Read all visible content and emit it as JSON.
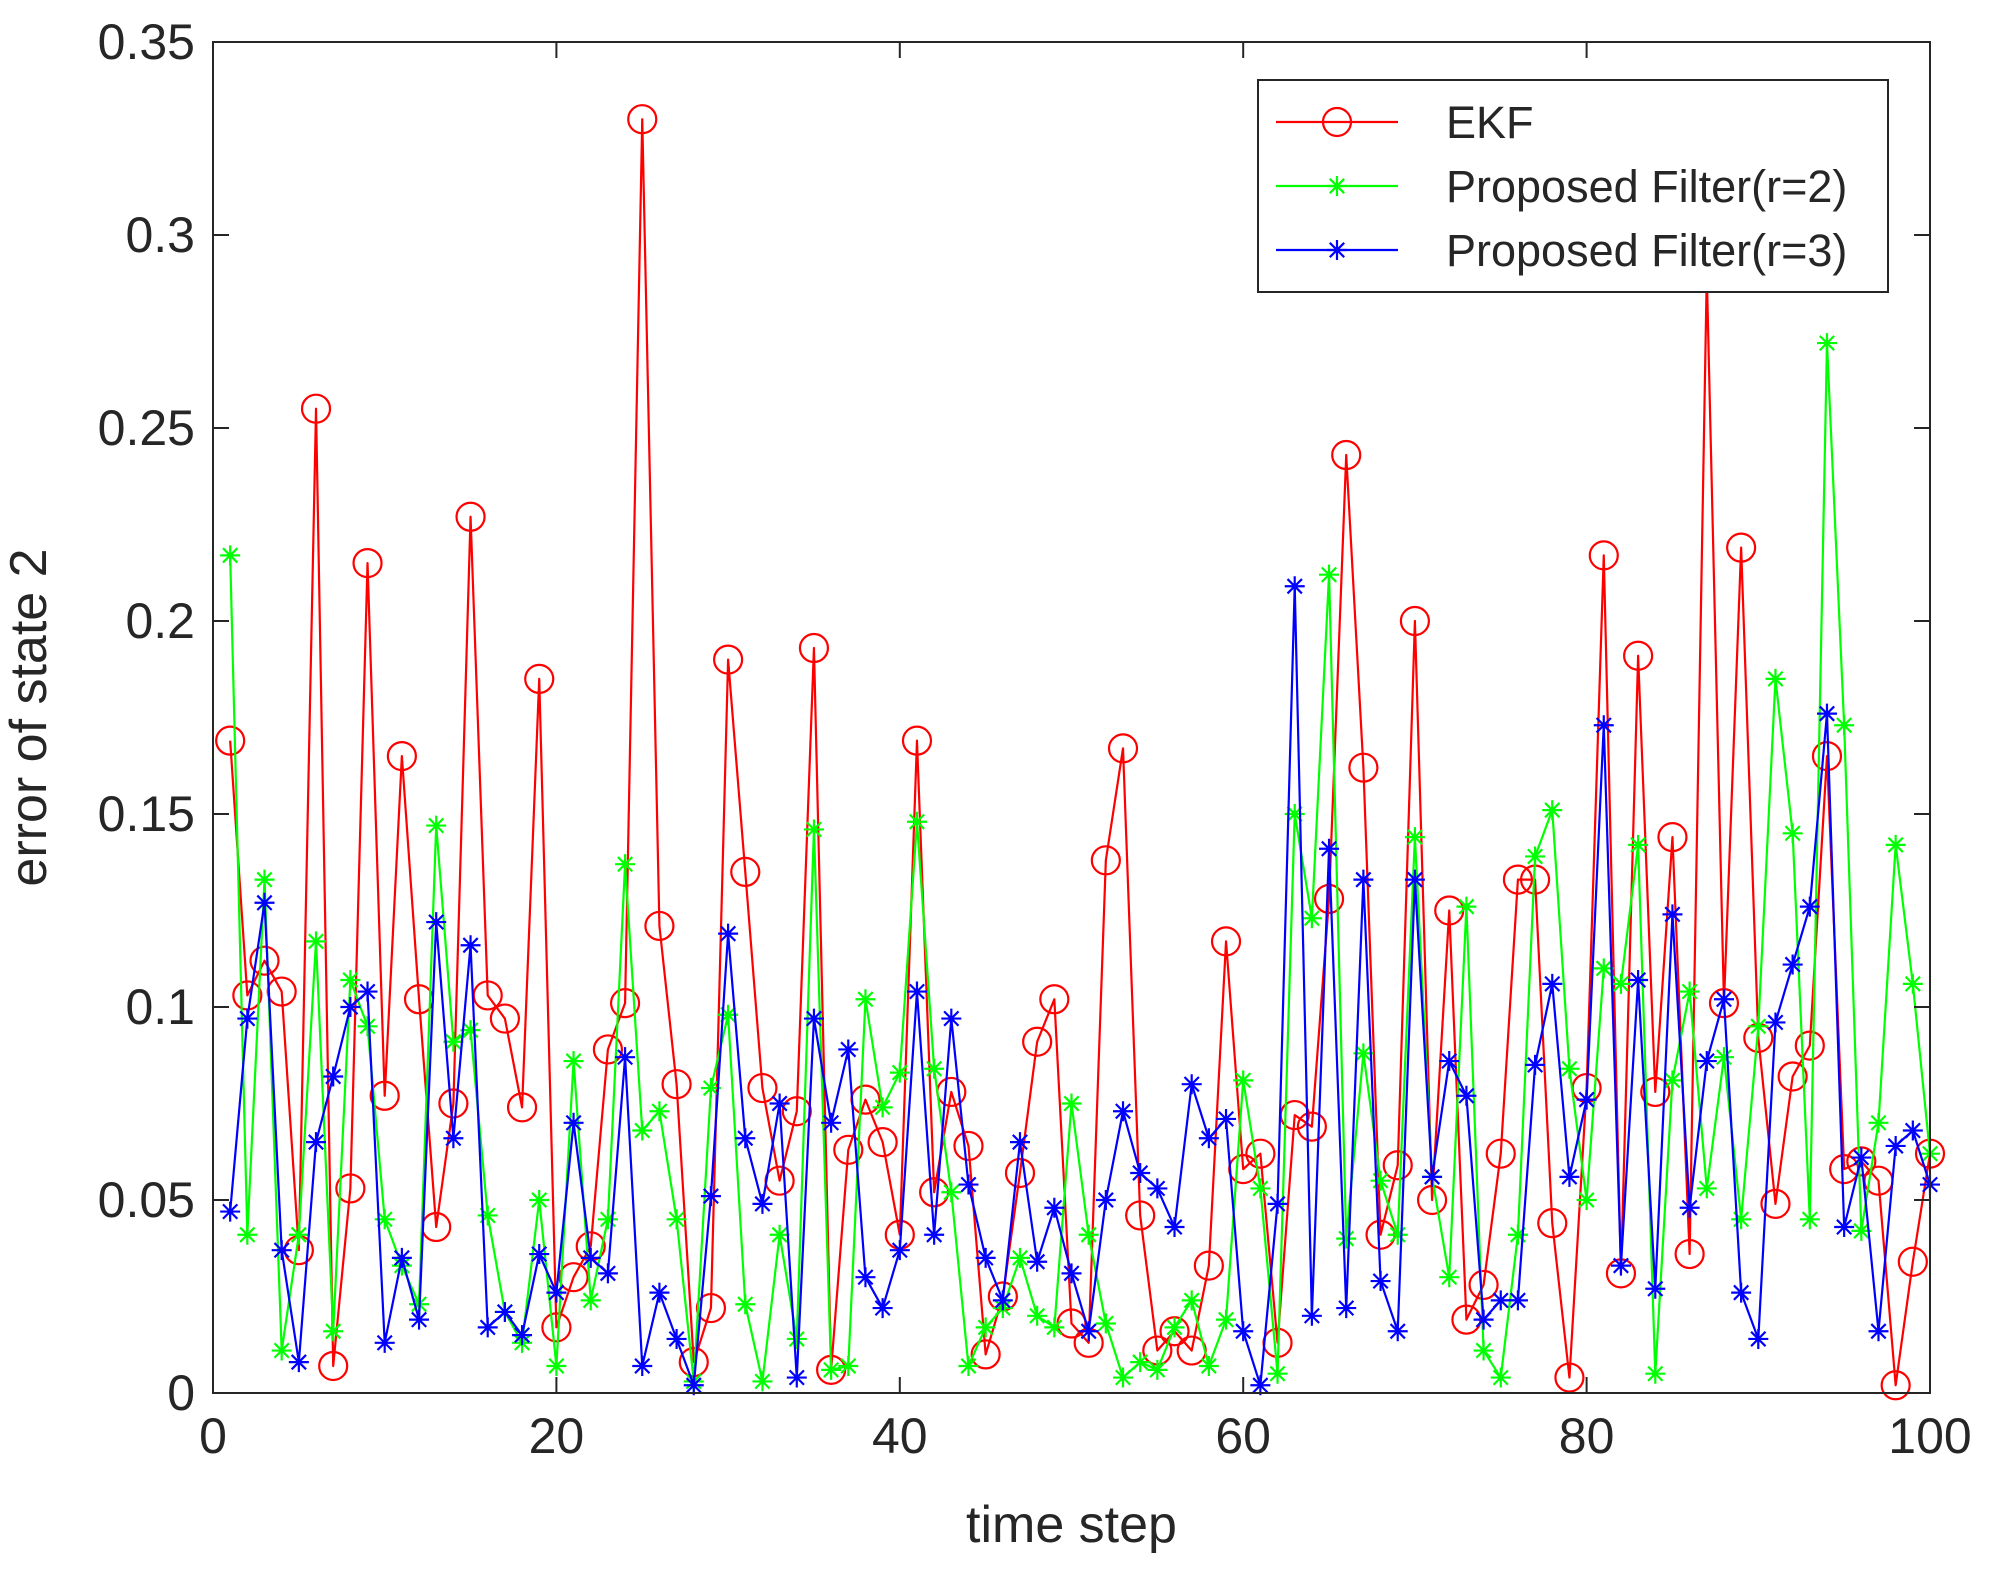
{
  "chart_data": {
    "type": "line",
    "title": "",
    "xlabel": "time step",
    "ylabel": "error of state 2",
    "xlim": [
      0,
      100
    ],
    "ylim": [
      0,
      0.35
    ],
    "xticks": [
      0,
      20,
      40,
      60,
      80,
      100
    ],
    "xtick_labels": [
      "0",
      "20",
      "40",
      "60",
      "80",
      "100"
    ],
    "yticks": [
      0,
      0.05,
      0.1,
      0.15,
      0.2,
      0.25,
      0.3,
      0.35
    ],
    "ytick_labels": [
      "0",
      "0.05",
      "0.1",
      "0.15",
      "0.2",
      "0.25",
      "0.3",
      "0.35"
    ],
    "grid": false,
    "legend_position": "top-right",
    "x": [
      1,
      2,
      3,
      4,
      5,
      6,
      7,
      8,
      9,
      10,
      11,
      12,
      13,
      14,
      15,
      16,
      17,
      18,
      19,
      20,
      21,
      22,
      23,
      24,
      25,
      26,
      27,
      28,
      29,
      30,
      31,
      32,
      33,
      34,
      35,
      36,
      37,
      38,
      39,
      40,
      41,
      42,
      43,
      44,
      45,
      46,
      47,
      48,
      49,
      50,
      51,
      52,
      53,
      54,
      55,
      56,
      57,
      58,
      59,
      60,
      61,
      62,
      63,
      64,
      65,
      66,
      67,
      68,
      69,
      70,
      71,
      72,
      73,
      74,
      75,
      76,
      77,
      78,
      79,
      80,
      81,
      82,
      83,
      84,
      85,
      86,
      87,
      88,
      89,
      90,
      91,
      92,
      93,
      94,
      95,
      96,
      97,
      98,
      99,
      100
    ],
    "series": [
      {
        "name": "EKF",
        "color": "#ff0000",
        "marker": "circle",
        "values": [
          0.169,
          0.103,
          0.112,
          0.104,
          0.037,
          0.255,
          0.007,
          0.053,
          0.215,
          0.077,
          0.165,
          0.102,
          0.043,
          0.075,
          0.227,
          0.103,
          0.097,
          0.074,
          0.185,
          0.017,
          0.03,
          0.038,
          0.089,
          0.101,
          0.33,
          0.121,
          0.08,
          0.008,
          0.022,
          0.19,
          0.135,
          0.079,
          0.055,
          0.073,
          0.193,
          0.006,
          0.063,
          0.076,
          0.065,
          0.041,
          0.169,
          0.052,
          0.078,
          0.064,
          0.01,
          0.025,
          0.057,
          0.091,
          0.102,
          0.018,
          0.013,
          0.138,
          0.167,
          0.046,
          0.011,
          0.016,
          0.011,
          0.033,
          0.117,
          0.058,
          0.062,
          0.013,
          0.072,
          0.069,
          0.128,
          0.243,
          0.162,
          0.041,
          0.059,
          0.2,
          0.05,
          0.125,
          0.019,
          0.028,
          0.062,
          0.133,
          0.133,
          0.044,
          0.004,
          0.079,
          0.217,
          0.031,
          0.191,
          0.078,
          0.144,
          0.036,
          0.29,
          0.101,
          0.219,
          0.092,
          0.049,
          0.082,
          0.09,
          0.165,
          0.058,
          0.06,
          0.055,
          0.002,
          0.034,
          0.062
        ]
      },
      {
        "name": "Proposed Filter(r=2)",
        "color": "#00ff00",
        "marker": "star",
        "values": [
          0.217,
          0.041,
          0.133,
          0.011,
          0.041,
          0.117,
          0.016,
          0.107,
          0.095,
          0.045,
          0.033,
          0.023,
          0.147,
          0.091,
          0.094,
          0.046,
          0.021,
          0.013,
          0.05,
          0.007,
          0.086,
          0.024,
          0.045,
          0.137,
          0.068,
          0.073,
          0.045,
          0.003,
          0.079,
          0.098,
          0.023,
          0.003,
          0.041,
          0.014,
          0.146,
          0.006,
          0.007,
          0.102,
          0.074,
          0.083,
          0.148,
          0.084,
          0.052,
          0.007,
          0.017,
          0.022,
          0.035,
          0.02,
          0.017,
          0.075,
          0.041,
          0.018,
          0.004,
          0.008,
          0.006,
          0.017,
          0.024,
          0.007,
          0.019,
          0.081,
          0.053,
          0.005,
          0.15,
          0.123,
          0.212,
          0.04,
          0.088,
          0.055,
          0.041,
          0.144,
          0.056,
          0.03,
          0.126,
          0.011,
          0.004,
          0.041,
          0.139,
          0.151,
          0.084,
          0.05,
          0.11,
          0.106,
          0.142,
          0.005,
          0.081,
          0.104,
          0.053,
          0.087,
          0.045,
          0.095,
          0.185,
          0.145,
          0.045,
          0.272,
          0.173,
          0.042,
          0.07,
          0.142,
          0.106,
          0.062
        ]
      },
      {
        "name": "Proposed Filter(r=3)",
        "color": "#0000ff",
        "marker": "star",
        "values": [
          0.047,
          0.097,
          0.127,
          0.037,
          0.008,
          0.065,
          0.082,
          0.1,
          0.104,
          0.013,
          0.035,
          0.019,
          0.122,
          0.066,
          0.116,
          0.017,
          0.021,
          0.015,
          0.036,
          0.026,
          0.07,
          0.035,
          0.031,
          0.087,
          0.007,
          0.026,
          0.014,
          0.002,
          0.051,
          0.119,
          0.066,
          0.049,
          0.075,
          0.004,
          0.097,
          0.07,
          0.089,
          0.03,
          0.022,
          0.037,
          0.104,
          0.041,
          0.097,
          0.054,
          0.035,
          0.024,
          0.065,
          0.034,
          0.048,
          0.031,
          0.016,
          0.05,
          0.073,
          0.057,
          0.053,
          0.043,
          0.08,
          0.066,
          0.071,
          0.016,
          0.002,
          0.049,
          0.209,
          0.02,
          0.141,
          0.022,
          0.133,
          0.029,
          0.016,
          0.133,
          0.056,
          0.086,
          0.077,
          0.019,
          0.024,
          0.024,
          0.085,
          0.106,
          0.056,
          0.076,
          0.173,
          0.033,
          0.107,
          0.027,
          0.124,
          0.048,
          0.086,
          0.102,
          0.026,
          0.014,
          0.096,
          0.111,
          0.126,
          0.176,
          0.043,
          0.061,
          0.016,
          0.064,
          0.068,
          0.054
        ]
      }
    ]
  }
}
